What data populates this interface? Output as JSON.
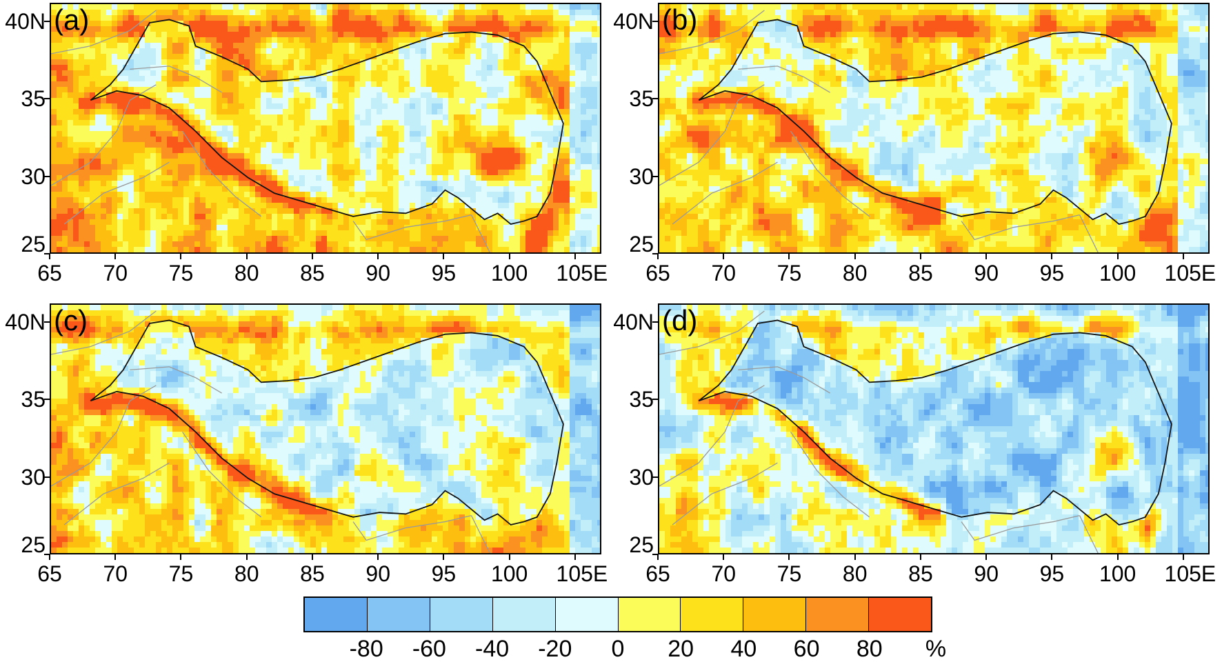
{
  "panels": [
    {
      "id": "a",
      "label": "(a)"
    },
    {
      "id": "b",
      "label": "(b)"
    },
    {
      "id": "c",
      "label": "(c)"
    },
    {
      "id": "d",
      "label": "(d)"
    }
  ],
  "lat_ticks": [
    "40N",
    "35",
    "30",
    "25"
  ],
  "lon_ticks": [
    "65",
    "70",
    "75",
    "80",
    "85",
    "90",
    "95",
    "100",
    "105E"
  ],
  "colorbar": {
    "colors": [
      "#62a8ee",
      "#83c4f4",
      "#a3dcf7",
      "#c2eefa",
      "#e0fbfd",
      "#fbfb5a",
      "#fde11a",
      "#fdbe10",
      "#fb9120",
      "#f9581a"
    ],
    "labels": [
      "-80",
      "-60",
      "-40",
      "-20",
      "0",
      "20",
      "40",
      "60",
      "80"
    ],
    "unit": "%"
  }
}
